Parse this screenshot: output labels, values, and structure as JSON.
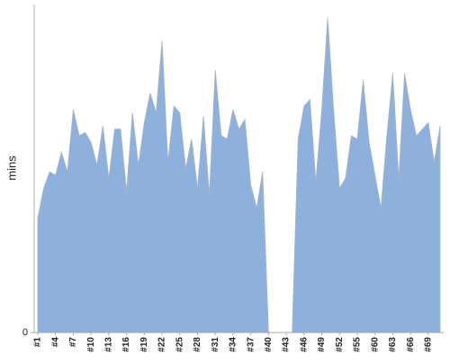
{
  "chart_data": {
    "type": "area",
    "y_label": "mins",
    "color": "#8eb0dc",
    "categories": [
      "#1",
      null,
      null,
      "#4",
      null,
      null,
      "#7",
      null,
      null,
      "#10",
      null,
      null,
      "#13",
      null,
      null,
      "#16",
      null,
      null,
      "#19",
      null,
      null,
      "#22",
      null,
      null,
      "#25",
      null,
      null,
      "#28",
      null,
      null,
      "#31",
      null,
      null,
      "#34",
      null,
      null,
      "#37",
      null,
      null,
      "#40",
      null,
      null,
      "#43",
      null,
      null,
      "#46",
      null,
      null,
      "#49",
      null,
      null,
      "#52",
      null,
      null,
      "#55",
      null,
      null,
      "#60",
      null,
      null,
      "#63",
      null,
      null,
      "#66",
      null,
      null,
      "#69",
      null,
      null
    ],
    "values": [
      35,
      44,
      49,
      48,
      55,
      49,
      68,
      60,
      61,
      58,
      51,
      63,
      47,
      62,
      62,
      43,
      67,
      51,
      64,
      73,
      67,
      89,
      52,
      69,
      67,
      50,
      59,
      44,
      66,
      42,
      80,
      60,
      59,
      68,
      62,
      65,
      45,
      38,
      49,
      0,
      0,
      0,
      0,
      0,
      59,
      69,
      71,
      46,
      68,
      96,
      68,
      44,
      47,
      60,
      59,
      77,
      58,
      48,
      38,
      60,
      79,
      47,
      79,
      68,
      60,
      62,
      64,
      52,
      63
    ],
    "ylim": [
      0,
      100
    ],
    "yticks": [
      0
    ]
  }
}
